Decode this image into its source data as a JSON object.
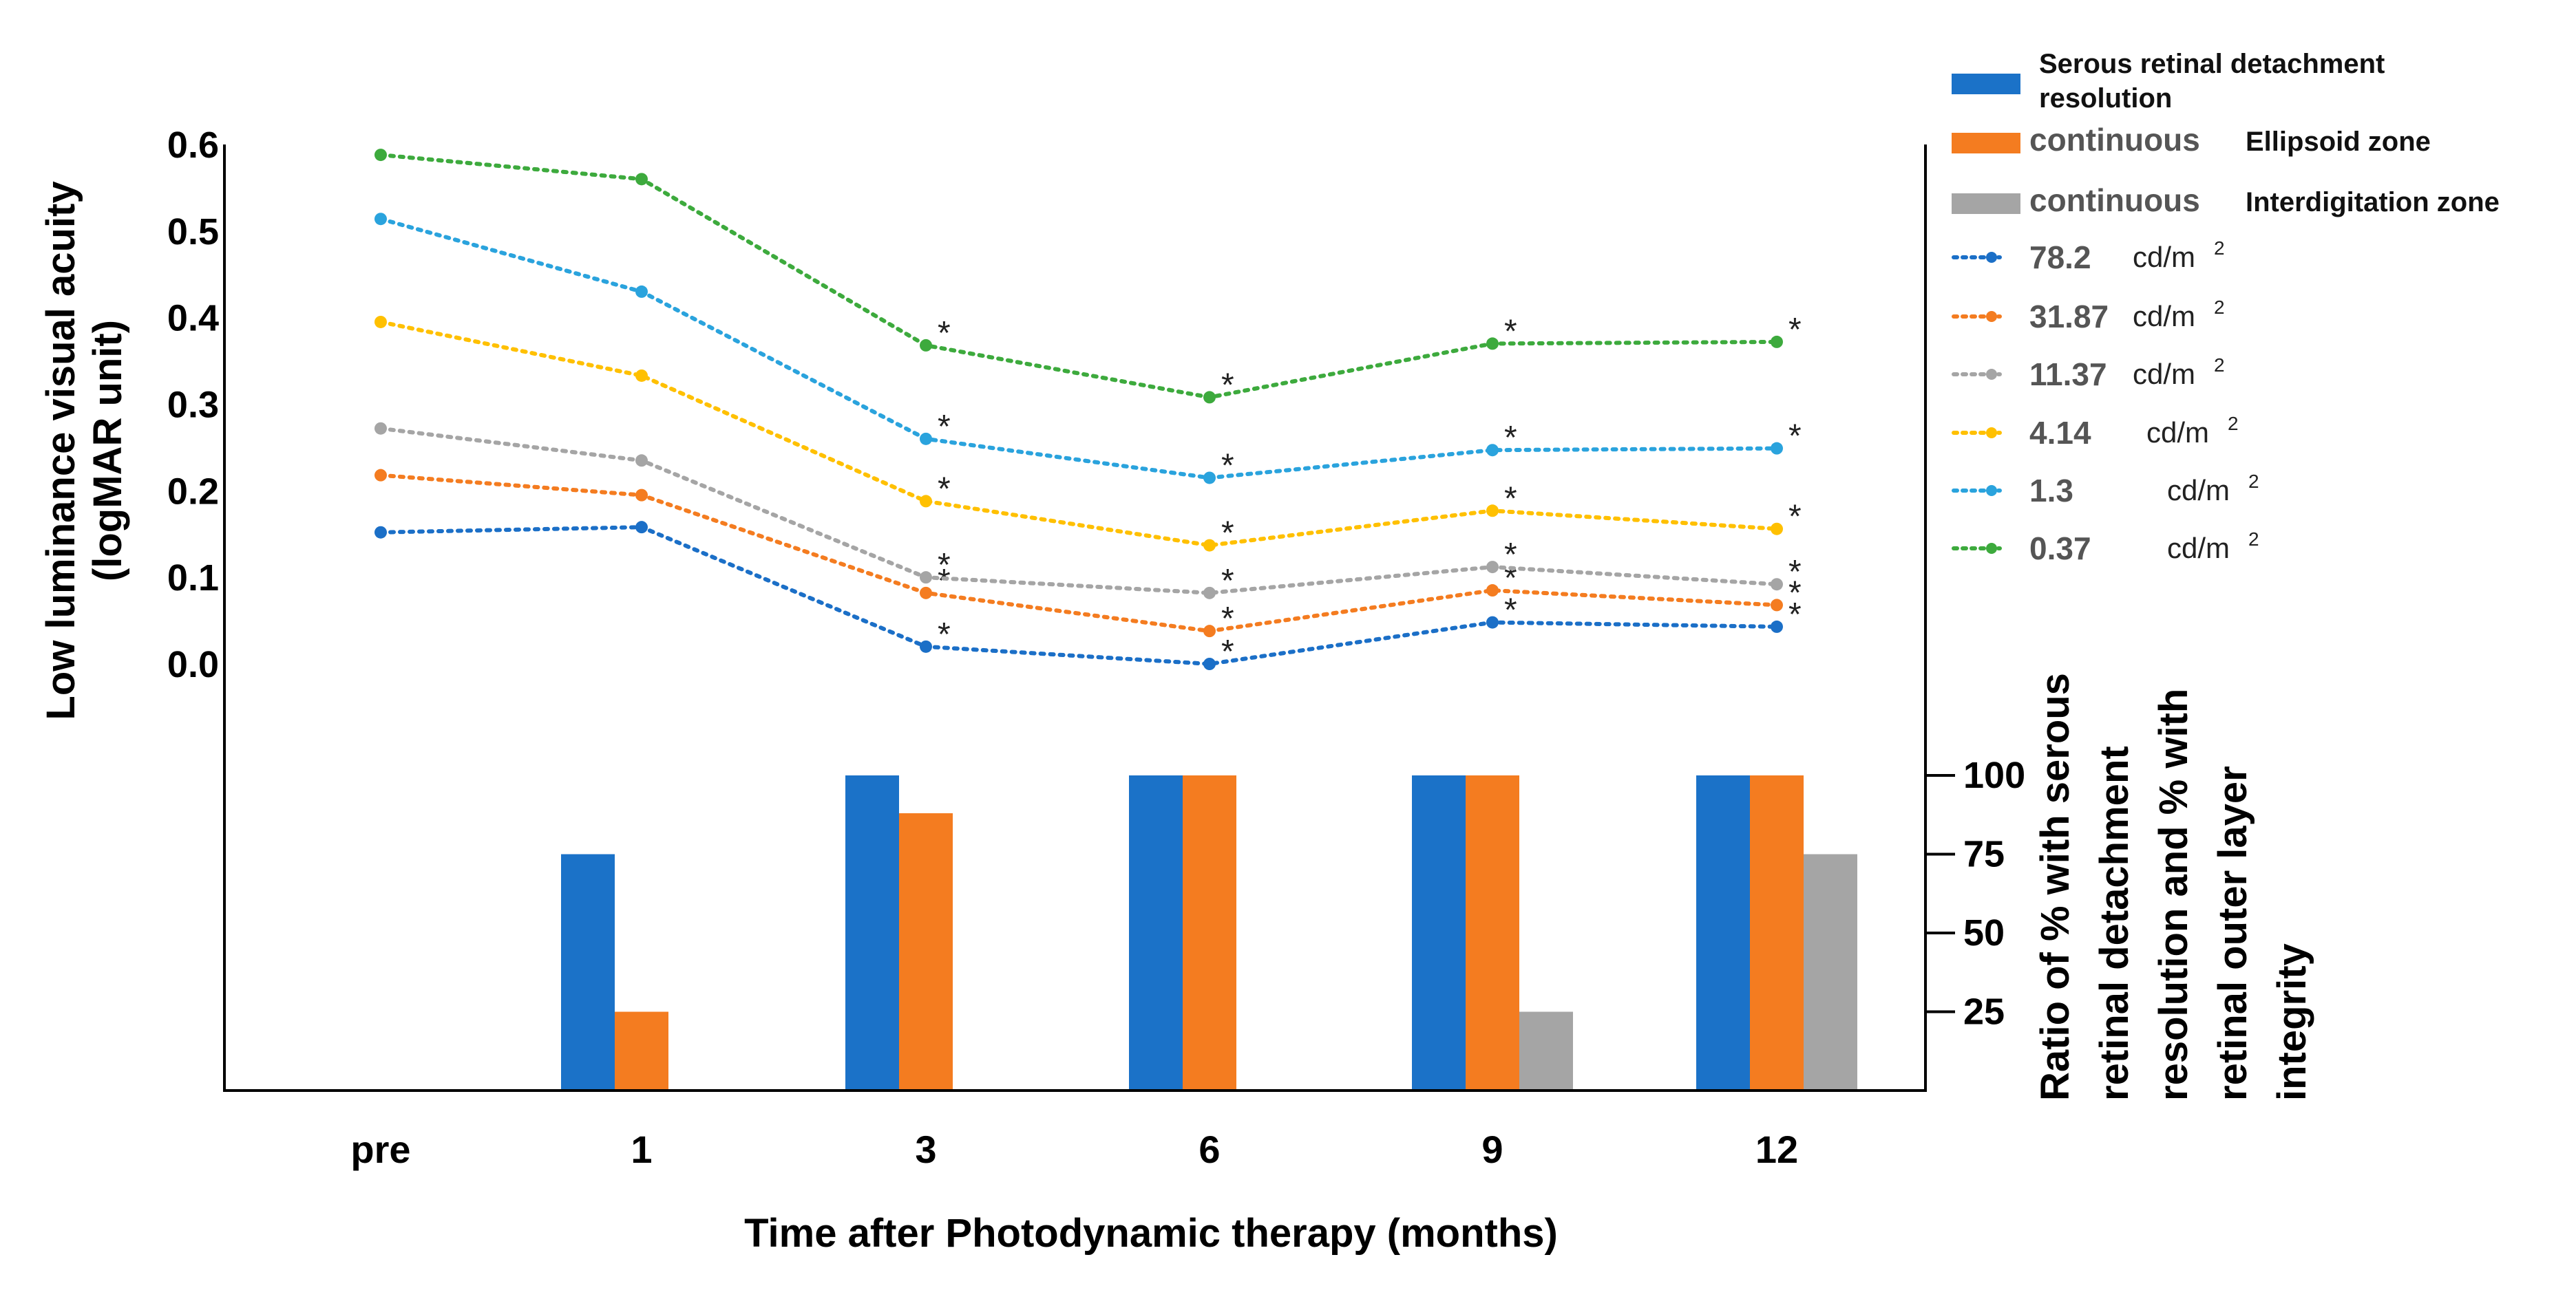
{
  "chart_data": {
    "type": "line+bar",
    "x_categories": [
      "pre",
      "1",
      "3",
      "6",
      "9",
      "12"
    ],
    "xlabel": "Time after Photodynamic therapy (months)",
    "left_axis": {
      "label_line1": "Low luminance visual acuity",
      "label_line2": "(logMAR unit)",
      "ticks": [
        "0.6",
        "0.5",
        "0.4",
        "0.3",
        "0.2",
        "0.1",
        "0.0"
      ],
      "tick_values": [
        0.6,
        0.5,
        0.4,
        0.3,
        0.2,
        0.1,
        0.0
      ],
      "ylim": [
        0,
        0.6
      ]
    },
    "right_axis": {
      "label_lines": [
        "Ratio of % with serous",
        "retinal detachment",
        "resolution and % with",
        "retinal outer layer",
        "integrity"
      ],
      "ticks": [
        "100",
        "75",
        "50",
        "25"
      ],
      "tick_values": [
        100,
        75,
        50,
        25
      ],
      "ylim": [
        0,
        100
      ]
    },
    "line_series": [
      {
        "name": "78.2",
        "unit": "cd/m",
        "sup": "2",
        "color": "#1b6fc7",
        "values": [
          0.152,
          0.158,
          0.02,
          0.0,
          0.048,
          0.043
        ],
        "significant": [
          "",
          "",
          "*",
          "*",
          "*",
          "*"
        ]
      },
      {
        "name": "31.87",
        "unit": "cd/m",
        "sup": "2",
        "color": "#f47c20",
        "values": [
          0.218,
          0.195,
          0.082,
          0.038,
          0.085,
          0.068
        ],
        "significant": [
          "",
          "",
          "*",
          "*",
          "*",
          "*"
        ]
      },
      {
        "name": "11.37",
        "unit": "cd/m",
        "sup": "2",
        "color": "#a5a5a5",
        "values": [
          0.272,
          0.235,
          0.1,
          0.082,
          0.112,
          0.092
        ],
        "significant": [
          "",
          "",
          "*",
          "*",
          "*",
          "*"
        ]
      },
      {
        "name": "4.14",
        "unit": "cd/m",
        "sup": "2",
        "color": "#ffc000",
        "values": [
          0.395,
          0.333,
          0.188,
          0.137,
          0.177,
          0.156
        ],
        "significant": [
          "",
          "",
          "*",
          "*",
          "*",
          "*"
        ]
      },
      {
        "name": "1.3",
        "unit": "cd/m",
        "sup": "2",
        "color": "#2aa3dd",
        "values": [
          0.514,
          0.43,
          0.26,
          0.215,
          0.247,
          0.249
        ],
        "significant": [
          "",
          "",
          "*",
          "*",
          "*",
          "*"
        ]
      },
      {
        "name": "0.37",
        "unit": "cd/m",
        "sup": "2",
        "color": "#3daa3d",
        "values": [
          0.588,
          0.56,
          0.368,
          0.308,
          0.37,
          0.372
        ],
        "significant": [
          "",
          "",
          "*",
          "*",
          "*",
          "*"
        ]
      }
    ],
    "bar_series": [
      {
        "legend_text": "Serous retinal detachment resolution",
        "legend_line1": "Serous retinal detachment",
        "legend_line2": "resolution",
        "color": "#1b72c8",
        "values": [
          0,
          75,
          100,
          100,
          100,
          100
        ]
      },
      {
        "legend_prefix": "continuous",
        "legend_text": "Ellipsoid zone",
        "color": "#f47c20",
        "values": [
          0,
          25,
          88,
          100,
          100,
          100
        ]
      },
      {
        "legend_prefix": "continuous",
        "legend_text": "Interdigitation zone",
        "color": "#a5a5a5",
        "values": [
          0,
          0,
          0,
          0,
          25,
          75
        ]
      }
    ],
    "significance_marker": "*",
    "legend_position": "top-right"
  }
}
